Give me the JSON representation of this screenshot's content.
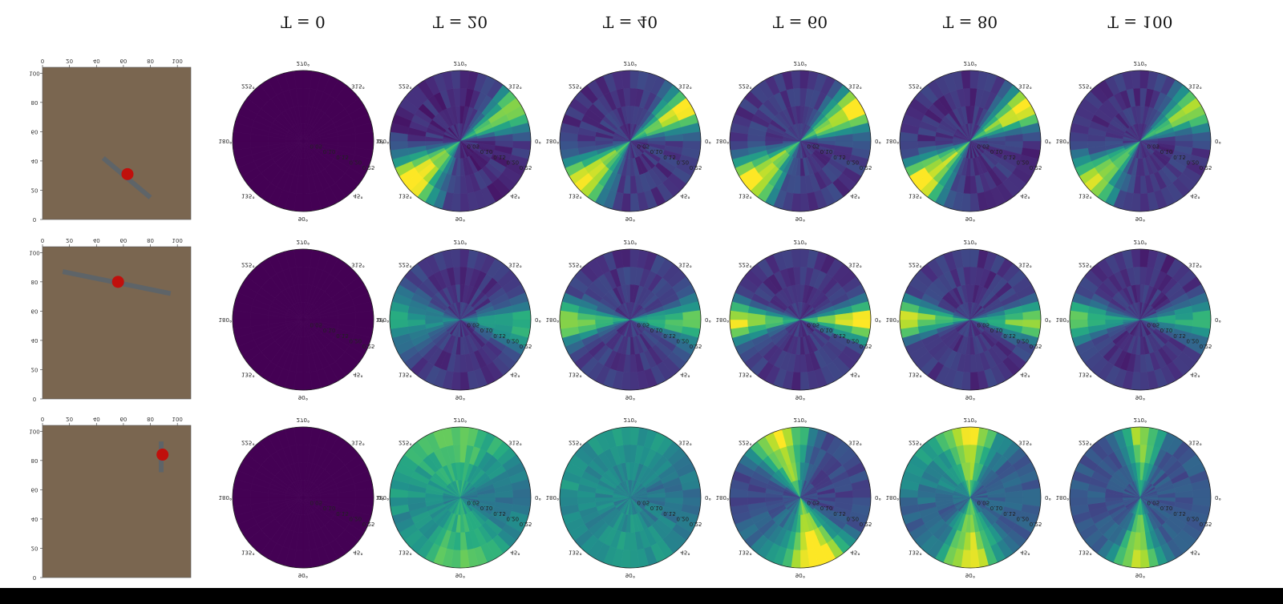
{
  "colors": {
    "viridis": [
      "#440154",
      "#472f7d",
      "#3b528b",
      "#2c728e",
      "#21918c",
      "#28ae80",
      "#5ec962",
      "#addc30",
      "#fde725"
    ],
    "sand": "#7a6650",
    "object": "#5e6468",
    "agent": "#c0100c"
  },
  "chart_data": {
    "type": "heatmap",
    "columns": [
      "T = 0",
      "T = 20",
      "T = 40",
      "T = 60",
      "T = 80",
      "T = 100"
    ],
    "map_ticks": {
      "x": [
        "0",
        "20",
        "40",
        "60",
        "80",
        "100"
      ],
      "y": [
        "100",
        "80",
        "60",
        "40",
        "20",
        "0"
      ]
    },
    "polar_ticks": {
      "angles": [
        "270°",
        "315°",
        "0°",
        "45°",
        "90°",
        "135°",
        "180°",
        "225°"
      ],
      "radii": [
        "0.05",
        "0.10",
        "0.15",
        "0.20",
        "0.25"
      ]
    },
    "rows": [
      {
        "scene": {
          "stick": [
            [
              45,
              42
            ],
            [
              80,
              15
            ]
          ],
          "agent": [
            63,
            31
          ]
        },
        "heat": [
          {
            "base": 0.0,
            "lobes": []
          },
          {
            "base": 0.12,
            "lobes": [
              [
                140,
                0.95,
                18
              ],
              [
                330,
                0.75,
                14
              ]
            ]
          },
          {
            "base": 0.15,
            "lobes": [
              [
                140,
                0.9,
                16
              ],
              [
                330,
                0.85,
                14
              ]
            ]
          },
          {
            "base": 0.16,
            "lobes": [
              [
                140,
                0.9,
                16
              ],
              [
                330,
                0.9,
                14
              ]
            ]
          },
          {
            "base": 0.14,
            "lobes": [
              [
                140,
                0.95,
                15
              ],
              [
                328,
                0.9,
                13
              ]
            ]
          },
          {
            "base": 0.15,
            "lobes": [
              [
                140,
                0.8,
                16
              ],
              [
                328,
                0.75,
                14
              ]
            ]
          }
        ]
      },
      {
        "scene": {
          "stick": [
            [
              15,
              87
            ],
            [
              95,
              72
            ]
          ],
          "agent": [
            56,
            80
          ]
        },
        "heat": [
          {
            "base": 0.0,
            "lobes": []
          },
          {
            "base": 0.15,
            "lobes": [
              [
                180,
                0.45,
                20
              ],
              [
                5,
                0.5,
                16
              ]
            ]
          },
          {
            "base": 0.16,
            "lobes": [
              [
                178,
                0.7,
                14
              ],
              [
                2,
                0.65,
                14
              ]
            ]
          },
          {
            "base": 0.15,
            "lobes": [
              [
                178,
                0.8,
                13
              ],
              [
                2,
                0.85,
                13
              ]
            ]
          },
          {
            "base": 0.15,
            "lobes": [
              [
                180,
                0.75,
                13
              ],
              [
                2,
                0.7,
                13
              ]
            ]
          },
          {
            "base": 0.14,
            "lobes": [
              [
                180,
                0.6,
                14
              ],
              [
                2,
                0.55,
                14
              ]
            ]
          }
        ]
      },
      {
        "scene": {
          "stick": [
            [
              88,
              93
            ],
            [
              88,
              72
            ]
          ],
          "agent": [
            89,
            84
          ]
        },
        "heat": [
          {
            "base": 0.0,
            "lobes": []
          },
          {
            "base": 0.38,
            "lobes": [
              [
                270,
                0.35,
                35
              ],
              [
                90,
                0.35,
                35
              ],
              [
                200,
                0.15,
                30
              ]
            ]
          },
          {
            "base": 0.35,
            "lobes": [
              [
                270,
                0.18,
                40
              ],
              [
                90,
                0.2,
                40
              ],
              [
                180,
                0.12,
                30
              ]
            ]
          },
          {
            "base": 0.2,
            "lobes": [
              [
                250,
                0.8,
                20
              ],
              [
                75,
                0.85,
                22
              ],
              [
                130,
                0.15,
                30
              ]
            ]
          },
          {
            "base": 0.3,
            "lobes": [
              [
                270,
                0.65,
                18
              ],
              [
                90,
                0.7,
                20
              ],
              [
                220,
                0.2,
                30
              ]
            ]
          },
          {
            "base": 0.26,
            "lobes": [
              [
                272,
                0.6,
                14
              ],
              [
                92,
                0.65,
                16
              ]
            ]
          }
        ]
      }
    ]
  }
}
